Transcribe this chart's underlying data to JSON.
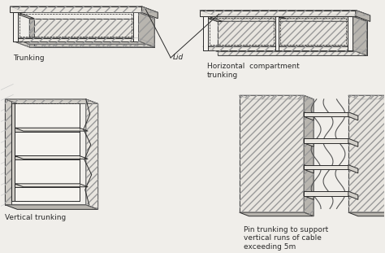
{
  "bg_color": "#f0eeea",
  "line_color": "#2a2a2a",
  "labels": {
    "trunking": "Trunking",
    "lid": "Lid",
    "horizontal": "Horizontal  compartment\ntrunking",
    "vertical": "Vertical trunking",
    "pin": "Pin trunking to support\nvertical runs of cable\nexceeding 5m"
  },
  "label_fontsize": 6.5,
  "figsize": [
    4.74,
    3.11
  ],
  "dpi": 100
}
